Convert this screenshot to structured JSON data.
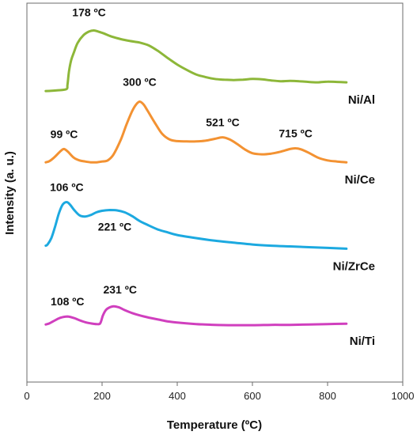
{
  "chart_data": {
    "type": "line",
    "xlabel": "Temperature (ºC)",
    "ylabel": "Intensity (a. u.)",
    "xlim": [
      0,
      1000
    ],
    "ylim": [
      0,
      1
    ],
    "xticks": [
      "0",
      "200",
      "400",
      "600",
      "800",
      "1000"
    ],
    "yticks_shown": false,
    "grid": false,
    "series": [
      {
        "name": "Ni/Al",
        "color": "#8db739",
        "x": [
          50,
          80,
          105,
          108,
          112,
          118,
          125,
          135,
          150,
          165,
          178,
          190,
          205,
          225,
          250,
          275,
          300,
          325,
          350,
          375,
          400,
          425,
          450,
          475,
          500,
          525,
          550,
          575,
          600,
          625,
          650,
          675,
          700,
          725,
          750,
          775,
          800,
          825,
          850
        ],
        "y": [
          0.768,
          0.77,
          0.773,
          0.785,
          0.82,
          0.85,
          0.87,
          0.895,
          0.915,
          0.925,
          0.928,
          0.925,
          0.92,
          0.912,
          0.905,
          0.9,
          0.896,
          0.888,
          0.873,
          0.855,
          0.838,
          0.824,
          0.812,
          0.805,
          0.8,
          0.798,
          0.797,
          0.798,
          0.8,
          0.799,
          0.796,
          0.794,
          0.795,
          0.794,
          0.792,
          0.791,
          0.793,
          0.792,
          0.791
        ]
      },
      {
        "name": "Ni/Ce",
        "color": "#f39232",
        "x": [
          50,
          60,
          75,
          90,
          99,
          110,
          125,
          140,
          155,
          170,
          185,
          200,
          215,
          230,
          250,
          265,
          280,
          290,
          300,
          310,
          320,
          340,
          360,
          380,
          400,
          425,
          450,
          475,
          500,
          521,
          540,
          560,
          580,
          600,
          625,
          650,
          675,
          700,
          715,
          730,
          750,
          775,
          800,
          825,
          850
        ],
        "y": [
          0.58,
          0.583,
          0.595,
          0.61,
          0.615,
          0.607,
          0.592,
          0.585,
          0.582,
          0.58,
          0.58,
          0.582,
          0.585,
          0.6,
          0.64,
          0.68,
          0.715,
          0.732,
          0.74,
          0.733,
          0.718,
          0.685,
          0.655,
          0.64,
          0.636,
          0.635,
          0.635,
          0.637,
          0.642,
          0.646,
          0.64,
          0.628,
          0.614,
          0.604,
          0.601,
          0.603,
          0.608,
          0.615,
          0.617,
          0.614,
          0.605,
          0.592,
          0.585,
          0.582,
          0.58
        ]
      },
      {
        "name": "Ni/ZrCe",
        "color": "#1ca9e0",
        "x": [
          50,
          55,
          65,
          75,
          85,
          95,
          106,
          115,
          125,
          140,
          155,
          170,
          185,
          200,
          221,
          240,
          260,
          280,
          300,
          325,
          350,
          375,
          400,
          450,
          500,
          550,
          600,
          650,
          700,
          750,
          800,
          850
        ],
        "y": [
          0.36,
          0.363,
          0.38,
          0.41,
          0.445,
          0.468,
          0.475,
          0.468,
          0.455,
          0.44,
          0.437,
          0.441,
          0.448,
          0.452,
          0.454,
          0.453,
          0.448,
          0.438,
          0.425,
          0.413,
          0.402,
          0.395,
          0.388,
          0.38,
          0.373,
          0.368,
          0.363,
          0.36,
          0.358,
          0.356,
          0.354,
          0.352
        ]
      },
      {
        "name": "Ni/Ti",
        "color": "#d03fbe",
        "x": [
          50,
          60,
          75,
          90,
          108,
          125,
          140,
          155,
          170,
          185,
          195,
          202,
          210,
          220,
          231,
          245,
          260,
          280,
          300,
          325,
          350,
          375,
          400,
          450,
          500,
          550,
          600,
          650,
          700,
          750,
          800,
          850
        ],
        "y": [
          0.152,
          0.155,
          0.163,
          0.17,
          0.173,
          0.169,
          0.163,
          0.158,
          0.155,
          0.153,
          0.155,
          0.175,
          0.19,
          0.197,
          0.2,
          0.197,
          0.19,
          0.182,
          0.176,
          0.17,
          0.165,
          0.16,
          0.157,
          0.153,
          0.151,
          0.15,
          0.15,
          0.151,
          0.151,
          0.152,
          0.153,
          0.154
        ]
      }
    ],
    "annotations": [
      {
        "text": "178 ºC",
        "x": 178,
        "y": 0.928
      },
      {
        "text": "300 ºC",
        "x": 300,
        "y": 0.74
      },
      {
        "text": "99 ºC",
        "x": 99,
        "y": 0.615
      },
      {
        "text": "521 ºC",
        "x": 521,
        "y": 0.646
      },
      {
        "text": "715 ºC",
        "x": 715,
        "y": 0.617
      },
      {
        "text": "106 ºC",
        "x": 106,
        "y": 0.475
      },
      {
        "text": "221 ºC",
        "x": 221,
        "y": 0.454
      },
      {
        "text": "108 ºC",
        "x": 108,
        "y": 0.173
      },
      {
        "text": "231 ºC",
        "x": 231,
        "y": 0.2
      }
    ]
  }
}
